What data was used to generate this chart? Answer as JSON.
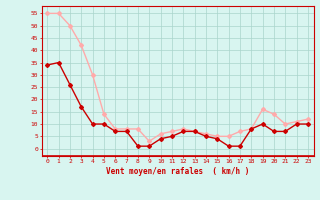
{
  "hours": [
    0,
    1,
    2,
    3,
    4,
    5,
    6,
    7,
    8,
    9,
    10,
    11,
    12,
    13,
    14,
    15,
    16,
    17,
    18,
    19,
    20,
    21,
    22,
    23
  ],
  "mean_wind": [
    34,
    35,
    26,
    17,
    10,
    10,
    7,
    7,
    1,
    1,
    4,
    5,
    7,
    7,
    5,
    4,
    1,
    1,
    8,
    10,
    7,
    7,
    10,
    10
  ],
  "gusts": [
    55,
    55,
    50,
    42,
    30,
    14,
    8,
    8,
    8,
    3,
    6,
    7,
    8,
    7,
    6,
    5,
    5,
    7,
    8,
    16,
    14,
    10,
    11,
    12
  ],
  "mean_color": "#cc0000",
  "gust_color": "#ffaaaa",
  "bg_color": "#d8f5f0",
  "grid_color": "#aad4cc",
  "xlabel": "Vent moyen/en rafales  ( km/h )",
  "ylabel_ticks": [
    0,
    5,
    10,
    15,
    20,
    25,
    30,
    35,
    40,
    45,
    50,
    55
  ],
  "ylim": [
    -3,
    58
  ],
  "xlim": [
    -0.5,
    23.5
  ],
  "axes_color": "#cc0000",
  "marker": "D",
  "markersize": 2,
  "linewidth": 1.0
}
